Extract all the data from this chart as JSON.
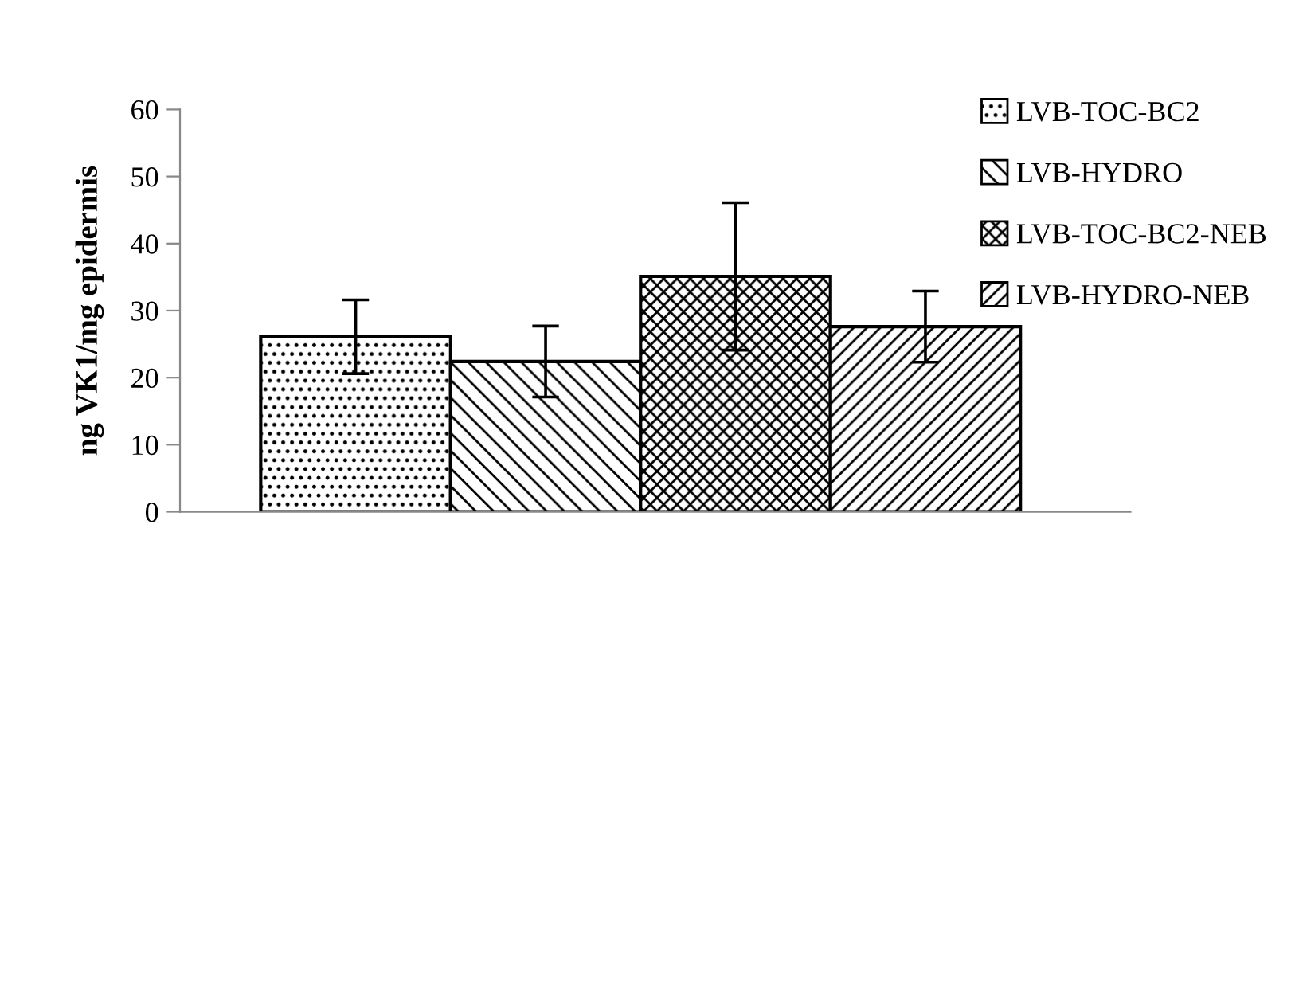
{
  "chart_data": {
    "type": "bar",
    "ylabel": "ng VK1/mg epidermis",
    "categories": [
      null
    ],
    "series": [
      {
        "name": "LVB-TOC-BC2",
        "color": "#000000",
        "values": [
          26.1
        ],
        "errors": [
          5.5
        ]
      },
      {
        "name": "LVB-HYDRO",
        "color": "#000000",
        "values": [
          22.4
        ],
        "errors": [
          5.3
        ]
      },
      {
        "name": "LVB-TOC-BC2-NEB",
        "color": "#000000",
        "values": [
          35.1
        ],
        "errors": [
          11
        ]
      },
      {
        "name": "LVB-HYDRO-NEB",
        "color": "#000000",
        "values": [
          27.6
        ],
        "errors": [
          5.3
        ]
      }
    ],
    "ylim": [
      0,
      60
    ],
    "yticks": [
      0,
      10,
      20,
      30,
      40,
      50,
      60
    ],
    "grid": false,
    "legend": "top right"
  }
}
